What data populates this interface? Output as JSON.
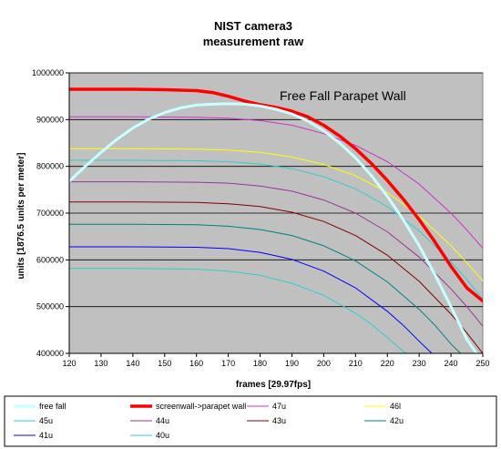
{
  "chart_data": {
    "type": "line",
    "title_line1": "NIST camera3",
    "title_line2": "measurement raw",
    "annotation": "Free Fall Parapet Wall",
    "xlabel": "frames [29.97fps]",
    "ylabel": "units [1876.5 units per meter]",
    "xlim": [
      120,
      250
    ],
    "ylim": [
      400000,
      1000000
    ],
    "xticks": [
      120,
      130,
      140,
      150,
      160,
      170,
      180,
      190,
      200,
      210,
      220,
      230,
      240,
      250
    ],
    "yticks": [
      400000,
      500000,
      600000,
      700000,
      800000,
      900000,
      1000000
    ],
    "grid": "horizontal",
    "legend_position": "bottom",
    "plot_background": "#c0c0c0",
    "series": [
      {
        "name": "free fall",
        "color": "#c8ffff",
        "width": 3,
        "points": [
          [
            120,
            768000
          ],
          [
            125,
            800000
          ],
          [
            130,
            830000
          ],
          [
            135,
            858000
          ],
          [
            140,
            882000
          ],
          [
            145,
            901000
          ],
          [
            150,
            915000
          ],
          [
            155,
            925000
          ],
          [
            160,
            931000
          ],
          [
            165,
            933000
          ],
          [
            170,
            934000
          ],
          [
            175,
            933000
          ],
          [
            180,
            929000
          ],
          [
            185,
            922000
          ],
          [
            190,
            912000
          ],
          [
            195,
            897000
          ],
          [
            200,
            876000
          ],
          [
            205,
            850000
          ],
          [
            210,
            818000
          ],
          [
            215,
            780000
          ],
          [
            220,
            736000
          ],
          [
            225,
            686000
          ],
          [
            230,
            630000
          ],
          [
            235,
            568000
          ],
          [
            240,
            500000
          ],
          [
            245,
            430000
          ],
          [
            248,
            400000
          ]
        ]
      },
      {
        "name": "screenwall->parapet wall",
        "color": "#ff0000",
        "width": 3.5,
        "points": [
          [
            120,
            965000
          ],
          [
            130,
            965000
          ],
          [
            140,
            965000
          ],
          [
            150,
            964000
          ],
          [
            160,
            962000
          ],
          [
            165,
            958000
          ],
          [
            170,
            950000
          ],
          [
            175,
            940000
          ],
          [
            180,
            932000
          ],
          [
            185,
            926000
          ],
          [
            190,
            918000
          ],
          [
            195,
            906000
          ],
          [
            200,
            888000
          ],
          [
            205,
            865000
          ],
          [
            210,
            838000
          ],
          [
            215,
            806000
          ],
          [
            220,
            770000
          ],
          [
            225,
            730000
          ],
          [
            230,
            686000
          ],
          [
            235,
            638000
          ],
          [
            240,
            586000
          ],
          [
            245,
            540000
          ],
          [
            250,
            512000
          ]
        ]
      },
      {
        "name": "47u",
        "color": "#cc33cc",
        "width": 1,
        "points": [
          [
            120,
            906000
          ],
          [
            140,
            906000
          ],
          [
            160,
            905000
          ],
          [
            170,
            903000
          ],
          [
            180,
            898000
          ],
          [
            190,
            888000
          ],
          [
            200,
            870000
          ],
          [
            210,
            845000
          ],
          [
            220,
            810000
          ],
          [
            230,
            762000
          ],
          [
            240,
            700000
          ],
          [
            245,
            664000
          ],
          [
            250,
            625000
          ]
        ]
      },
      {
        "name": "46l",
        "color": "#ffff00",
        "width": 1,
        "points": [
          [
            120,
            838000
          ],
          [
            140,
            838000
          ],
          [
            160,
            837000
          ],
          [
            170,
            835000
          ],
          [
            180,
            830000
          ],
          [
            190,
            820000
          ],
          [
            200,
            804000
          ],
          [
            210,
            780000
          ],
          [
            220,
            744000
          ],
          [
            230,
            694000
          ],
          [
            240,
            630000
          ],
          [
            245,
            594000
          ],
          [
            250,
            555000
          ]
        ]
      },
      {
        "name": "45u",
        "color": "#33cccc",
        "width": 1,
        "points": [
          [
            120,
            813000
          ],
          [
            140,
            813000
          ],
          [
            160,
            812000
          ],
          [
            170,
            810000
          ],
          [
            180,
            805000
          ],
          [
            190,
            795000
          ],
          [
            200,
            778000
          ],
          [
            210,
            752000
          ],
          [
            220,
            714000
          ],
          [
            230,
            662000
          ],
          [
            240,
            596000
          ],
          [
            245,
            558000
          ],
          [
            250,
            516000
          ]
        ]
      },
      {
        "name": "44u",
        "color": "#993399",
        "width": 1,
        "points": [
          [
            120,
            767000
          ],
          [
            140,
            767000
          ],
          [
            160,
            766000
          ],
          [
            170,
            764000
          ],
          [
            180,
            758000
          ],
          [
            190,
            747000
          ],
          [
            200,
            728000
          ],
          [
            210,
            700000
          ],
          [
            220,
            660000
          ],
          [
            230,
            606000
          ],
          [
            240,
            538000
          ],
          [
            245,
            500000
          ],
          [
            250,
            458000
          ]
        ]
      },
      {
        "name": "43u",
        "color": "#800000",
        "width": 1,
        "points": [
          [
            120,
            724000
          ],
          [
            140,
            724000
          ],
          [
            160,
            723000
          ],
          [
            170,
            720000
          ],
          [
            180,
            714000
          ],
          [
            190,
            702000
          ],
          [
            200,
            682000
          ],
          [
            210,
            652000
          ],
          [
            220,
            610000
          ],
          [
            230,
            554000
          ],
          [
            240,
            484000
          ],
          [
            245,
            444000
          ],
          [
            250,
            400000
          ]
        ]
      },
      {
        "name": "42u",
        "color": "#008080",
        "width": 1,
        "points": [
          [
            120,
            676000
          ],
          [
            140,
            676000
          ],
          [
            160,
            675000
          ],
          [
            170,
            672000
          ],
          [
            180,
            665000
          ],
          [
            190,
            652000
          ],
          [
            200,
            630000
          ],
          [
            210,
            598000
          ],
          [
            220,
            553000
          ],
          [
            230,
            494000
          ],
          [
            235,
            460000
          ],
          [
            240,
            420000
          ],
          [
            243,
            400000
          ]
        ]
      },
      {
        "name": "41u",
        "color": "#0000ff",
        "width": 1,
        "points": [
          [
            120,
            628000
          ],
          [
            140,
            628000
          ],
          [
            160,
            627000
          ],
          [
            170,
            624000
          ],
          [
            180,
            616000
          ],
          [
            190,
            601000
          ],
          [
            200,
            576000
          ],
          [
            210,
            540000
          ],
          [
            220,
            490000
          ],
          [
            225,
            460000
          ],
          [
            230,
            426000
          ],
          [
            234,
            400000
          ]
        ]
      },
      {
        "name": "40u",
        "color": "#33cccc",
        "width": 1,
        "points": [
          [
            120,
            582000
          ],
          [
            140,
            582000
          ],
          [
            160,
            580000
          ],
          [
            170,
            576000
          ],
          [
            180,
            567000
          ],
          [
            190,
            550000
          ],
          [
            200,
            524000
          ],
          [
            210,
            486000
          ],
          [
            215,
            462000
          ],
          [
            220,
            434000
          ],
          [
            225,
            404000
          ],
          [
            226,
            400000
          ]
        ]
      }
    ]
  }
}
